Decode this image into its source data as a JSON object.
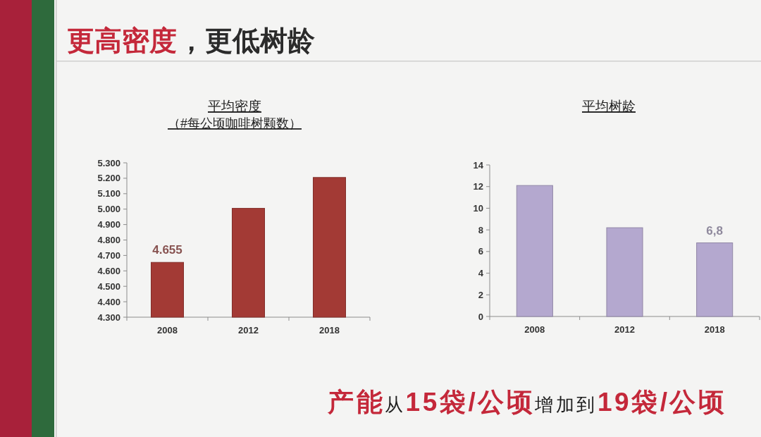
{
  "chart_data": [
    {
      "type": "other",
      "title": "**更高密度**，更低树龄",
      "annotations": [
        "**产能**从**15袋/公顷**增加到**19袋/公顷**"
      ]
    },
    {
      "type": "bar",
      "title": "平均密度",
      "subtitle": "（#每公顷咖啡树颗数）",
      "categories": [
        "2008",
        "2012",
        "2018"
      ],
      "values": [
        4.655,
        5.005,
        5.205
      ],
      "value_labels": [
        "4.655",
        null,
        null
      ],
      "color": "#a33a35",
      "ylim": [
        4.3,
        5.3
      ],
      "yticks": [
        {
          "value": 4.3,
          "label": "4.300"
        },
        {
          "value": 4.4,
          "label": "4.400"
        },
        {
          "value": 4.5,
          "label": "4.500"
        },
        {
          "value": 4.6,
          "label": "4.600"
        },
        {
          "value": 4.7,
          "label": "4.700"
        },
        {
          "value": 4.8,
          "label": "4.800"
        },
        {
          "value": 4.9,
          "label": "4.900"
        },
        {
          "value": 5.0,
          "label": "5.000"
        },
        {
          "value": 5.1,
          "label": "5.100"
        },
        {
          "value": 5.2,
          "label": "5.200"
        },
        {
          "value": 5.3,
          "label": "5.300"
        }
      ]
    },
    {
      "type": "bar",
      "title": "平均树龄",
      "categories": [
        "2008",
        "2012",
        "2018"
      ],
      "values": [
        12.1,
        8.2,
        6.8
      ],
      "value_labels": [
        null,
        null,
        "6,8"
      ],
      "color": "#b4a8cf",
      "ylim": [
        0,
        14
      ],
      "yticks": [
        0,
        2,
        4,
        6,
        8,
        10,
        12,
        14
      ]
    }
  ]
}
